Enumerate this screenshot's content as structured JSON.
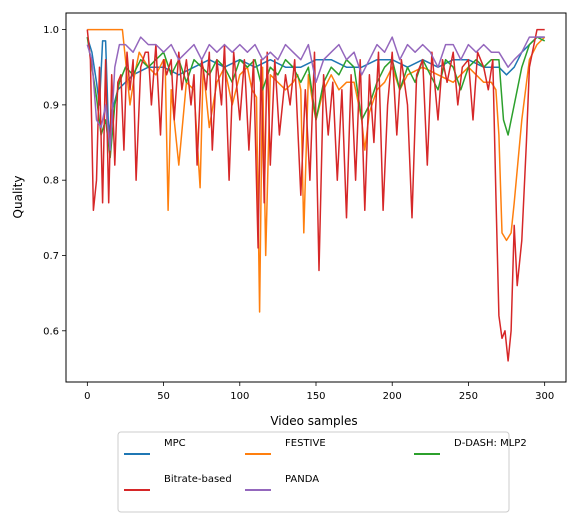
{
  "chart_data": {
    "type": "line",
    "title": "",
    "xlabel": "Video samples",
    "ylabel": "Quality",
    "xlim": [
      -14,
      314
    ],
    "ylim": [
      0.532,
      1.022
    ],
    "xticks": [
      0,
      50,
      100,
      150,
      200,
      250,
      300
    ],
    "xtick_labels": [
      "0",
      "50",
      "100",
      "150",
      "200",
      "250",
      "300"
    ],
    "yticks": [
      0.6,
      0.7,
      0.8,
      0.9,
      1.0
    ],
    "ytick_labels": [
      "0.6",
      "0.7",
      "0.8",
      "0.9",
      "1.0"
    ],
    "grid": false,
    "legend": {
      "placement": "below",
      "columns": 3
    },
    "series": [
      {
        "name": "MPC",
        "color": "#1f77b4",
        "x": [
          0,
          3,
          6,
          8,
          10,
          12,
          14,
          16,
          20,
          25,
          30,
          40,
          50,
          60,
          70,
          80,
          90,
          100,
          110,
          120,
          130,
          140,
          150,
          160,
          170,
          180,
          190,
          200,
          210,
          220,
          230,
          240,
          250,
          260,
          270,
          275,
          280,
          285,
          290,
          295,
          300
        ],
        "values": [
          0.99,
          0.97,
          0.93,
          0.9,
          0.985,
          0.985,
          0.86,
          0.89,
          0.92,
          0.93,
          0.94,
          0.95,
          0.95,
          0.94,
          0.95,
          0.96,
          0.95,
          0.96,
          0.95,
          0.96,
          0.95,
          0.95,
          0.96,
          0.96,
          0.95,
          0.95,
          0.96,
          0.96,
          0.95,
          0.96,
          0.95,
          0.96,
          0.96,
          0.95,
          0.95,
          0.94,
          0.95,
          0.97,
          0.98,
          0.99,
          0.99
        ]
      },
      {
        "name": "FESTIVE",
        "color": "#ff7f0e",
        "x": [
          0,
          5,
          10,
          15,
          20,
          23,
          25,
          28,
          31,
          34,
          37,
          40,
          45,
          50,
          51,
          53,
          55,
          57,
          60,
          65,
          70,
          74,
          76,
          80,
          85,
          90,
          95,
          100,
          105,
          108,
          111,
          113,
          115,
          117,
          120,
          125,
          130,
          135,
          138,
          140,
          142,
          145,
          148,
          150,
          155,
          160,
          165,
          170,
          175,
          180,
          182,
          185,
          190,
          195,
          200,
          205,
          210,
          220,
          230,
          240,
          250,
          260,
          265,
          268,
          270,
          272,
          275,
          278,
          280,
          285,
          290,
          295,
          300
        ],
        "values": [
          1.0,
          1.0,
          1.0,
          1.0,
          1.0,
          1.0,
          0.96,
          0.9,
          0.94,
          0.97,
          0.96,
          0.95,
          0.94,
          0.96,
          0.96,
          0.76,
          0.92,
          0.88,
          0.82,
          0.93,
          0.92,
          0.79,
          0.95,
          0.87,
          0.93,
          0.95,
          0.9,
          0.94,
          0.95,
          0.92,
          0.91,
          0.625,
          0.95,
          0.7,
          0.94,
          0.93,
          0.92,
          0.93,
          0.94,
          0.92,
          0.73,
          0.94,
          0.9,
          0.88,
          0.92,
          0.94,
          0.92,
          0.93,
          0.93,
          0.88,
          0.84,
          0.89,
          0.92,
          0.93,
          0.95,
          0.92,
          0.94,
          0.95,
          0.94,
          0.93,
          0.95,
          0.93,
          0.93,
          0.92,
          0.86,
          0.73,
          0.72,
          0.73,
          0.77,
          0.88,
          0.96,
          0.98,
          0.99
        ]
      },
      {
        "name": "D-DASH: MLP2",
        "color": "#2ca02c",
        "x": [
          0,
          3,
          6,
          9,
          12,
          15,
          18,
          21,
          25,
          30,
          35,
          40,
          45,
          50,
          55,
          60,
          65,
          70,
          75,
          80,
          85,
          90,
          95,
          100,
          105,
          110,
          115,
          120,
          125,
          130,
          135,
          140,
          145,
          150,
          155,
          160,
          165,
          170,
          175,
          180,
          185,
          190,
          195,
          200,
          205,
          210,
          215,
          220,
          225,
          230,
          235,
          240,
          245,
          250,
          255,
          260,
          265,
          270,
          273,
          276,
          280,
          285,
          290,
          295,
          300
        ],
        "values": [
          0.99,
          0.95,
          0.91,
          0.86,
          0.88,
          0.83,
          0.9,
          0.93,
          0.95,
          0.94,
          0.96,
          0.95,
          0.96,
          0.97,
          0.94,
          0.96,
          0.93,
          0.96,
          0.95,
          0.94,
          0.96,
          0.95,
          0.93,
          0.96,
          0.95,
          0.96,
          0.92,
          0.95,
          0.94,
          0.96,
          0.95,
          0.93,
          0.95,
          0.88,
          0.93,
          0.95,
          0.94,
          0.96,
          0.95,
          0.88,
          0.9,
          0.93,
          0.95,
          0.96,
          0.92,
          0.95,
          0.93,
          0.96,
          0.94,
          0.92,
          0.96,
          0.95,
          0.92,
          0.95,
          0.96,
          0.95,
          0.96,
          0.96,
          0.88,
          0.86,
          0.9,
          0.95,
          0.98,
          0.99,
          0.985
        ]
      },
      {
        "name": "Bitrate-based",
        "color": "#d62728",
        "x": [
          0,
          2,
          4,
          6,
          8,
          10,
          12,
          14,
          16,
          18,
          20,
          22,
          24,
          26,
          28,
          30,
          32,
          35,
          38,
          40,
          42,
          45,
          48,
          50,
          52,
          55,
          57,
          60,
          62,
          65,
          68,
          70,
          72,
          75,
          78,
          80,
          82,
          85,
          88,
          90,
          93,
          96,
          100,
          103,
          106,
          109,
          112,
          114,
          116,
          118,
          120,
          123,
          126,
          130,
          133,
          136,
          140,
          143,
          146,
          149,
          152,
          155,
          158,
          161,
          164,
          167,
          170,
          173,
          176,
          179,
          182,
          185,
          188,
          191,
          194,
          197,
          200,
          203,
          206,
          210,
          213,
          216,
          220,
          223,
          226,
          230,
          233,
          236,
          240,
          243,
          246,
          250,
          253,
          256,
          260,
          263,
          266,
          268,
          270,
          272,
          274,
          276,
          278,
          280,
          282,
          285,
          288,
          290,
          295,
          300
        ],
        "values": [
          1.0,
          0.96,
          0.76,
          0.8,
          0.95,
          0.77,
          0.96,
          0.77,
          0.94,
          0.82,
          0.93,
          0.94,
          0.84,
          0.97,
          0.92,
          0.96,
          0.8,
          0.95,
          0.97,
          0.97,
          0.9,
          0.98,
          0.86,
          0.96,
          0.94,
          0.96,
          0.88,
          0.97,
          0.92,
          0.96,
          0.9,
          0.94,
          0.82,
          0.96,
          0.92,
          0.97,
          0.84,
          0.96,
          0.9,
          0.98,
          0.8,
          0.97,
          0.88,
          0.96,
          0.84,
          0.96,
          0.71,
          0.96,
          0.77,
          0.97,
          0.82,
          0.96,
          0.86,
          0.94,
          0.9,
          0.96,
          0.78,
          0.92,
          0.8,
          0.97,
          0.68,
          0.94,
          0.86,
          0.93,
          0.8,
          0.92,
          0.75,
          0.94,
          0.8,
          0.96,
          0.76,
          0.94,
          0.85,
          0.97,
          0.76,
          0.9,
          0.97,
          0.86,
          0.96,
          0.9,
          0.75,
          0.94,
          0.96,
          0.82,
          0.97,
          0.88,
          0.96,
          0.93,
          0.97,
          0.9,
          0.95,
          0.96,
          0.88,
          0.97,
          0.95,
          0.92,
          0.96,
          0.78,
          0.62,
          0.59,
          0.6,
          0.56,
          0.6,
          0.74,
          0.66,
          0.72,
          0.85,
          0.95,
          1.0,
          1.0
        ]
      },
      {
        "name": "PANDA",
        "color": "#9467bd",
        "x": [
          0,
          3,
          6,
          9,
          12,
          15,
          18,
          21,
          25,
          30,
          35,
          40,
          45,
          50,
          55,
          60,
          65,
          70,
          75,
          80,
          85,
          90,
          95,
          100,
          105,
          110,
          115,
          120,
          125,
          130,
          135,
          140,
          145,
          150,
          155,
          160,
          165,
          170,
          175,
          180,
          185,
          190,
          195,
          200,
          205,
          210,
          215,
          220,
          225,
          230,
          235,
          240,
          245,
          250,
          255,
          260,
          265,
          270,
          273,
          276,
          280,
          285,
          290,
          295,
          300
        ],
        "values": [
          0.98,
          0.96,
          0.88,
          0.87,
          0.9,
          0.84,
          0.95,
          0.98,
          0.98,
          0.97,
          0.99,
          0.98,
          0.98,
          0.97,
          0.98,
          0.96,
          0.97,
          0.98,
          0.96,
          0.98,
          0.97,
          0.98,
          0.97,
          0.98,
          0.97,
          0.98,
          0.96,
          0.97,
          0.96,
          0.98,
          0.97,
          0.96,
          0.98,
          0.93,
          0.96,
          0.97,
          0.98,
          0.96,
          0.97,
          0.94,
          0.96,
          0.98,
          0.97,
          0.99,
          0.96,
          0.98,
          0.97,
          0.98,
          0.97,
          0.95,
          0.98,
          0.98,
          0.96,
          0.98,
          0.97,
          0.98,
          0.97,
          0.97,
          0.96,
          0.95,
          0.96,
          0.97,
          0.99,
          0.99,
          0.99
        ]
      }
    ]
  }
}
